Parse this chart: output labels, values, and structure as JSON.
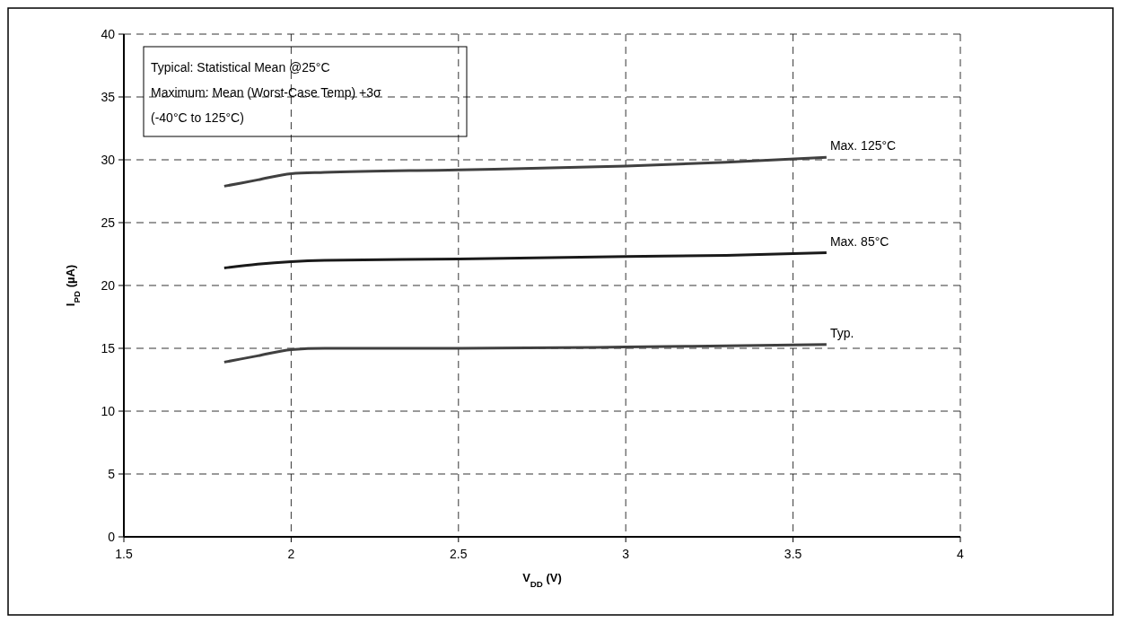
{
  "chart_data": {
    "type": "line",
    "xlabel": "V$_{DD}$ (V)",
    "ylabel": "I$_{PD}$ (µA)",
    "xlim": [
      1.5,
      4
    ],
    "xticks": [
      1.5,
      2,
      2.5,
      3,
      3.5,
      4
    ],
    "ylim": [
      0,
      40
    ],
    "yticks": [
      0,
      5,
      10,
      15,
      20,
      25,
      30,
      35,
      40
    ],
    "grid": true,
    "marker": "none",
    "line_style": "solid",
    "annotations": [
      "Typical: Statistical Mean @25°C",
      "Maximum: Mean (Worst-Case Temp) +3σ",
      "(-40°C to 125°C)"
    ],
    "series": [
      {
        "name": "Max. 125°C",
        "color": "#404040",
        "x": [
          1.8,
          1.9,
          2,
          2.1,
          2.5,
          3,
          3.3,
          3.6
        ],
        "values": [
          27.9,
          28.4,
          28.9,
          29.0,
          29.2,
          29.5,
          29.8,
          30.2
        ]
      },
      {
        "name": "Max. 85°C",
        "color": "#1a1a1a",
        "x": [
          1.8,
          1.9,
          2,
          2.1,
          2.5,
          3,
          3.3,
          3.6
        ],
        "values": [
          21.4,
          21.7,
          21.9,
          22.0,
          22.1,
          22.3,
          22.4,
          22.6
        ]
      },
      {
        "name": "Typ.",
        "color": "#404040",
        "x": [
          1.8,
          1.9,
          2,
          2.1,
          2.5,
          3,
          3.3,
          3.6
        ],
        "values": [
          13.9,
          14.4,
          14.9,
          15.0,
          15.0,
          15.1,
          15.2,
          15.3
        ]
      }
    ]
  }
}
